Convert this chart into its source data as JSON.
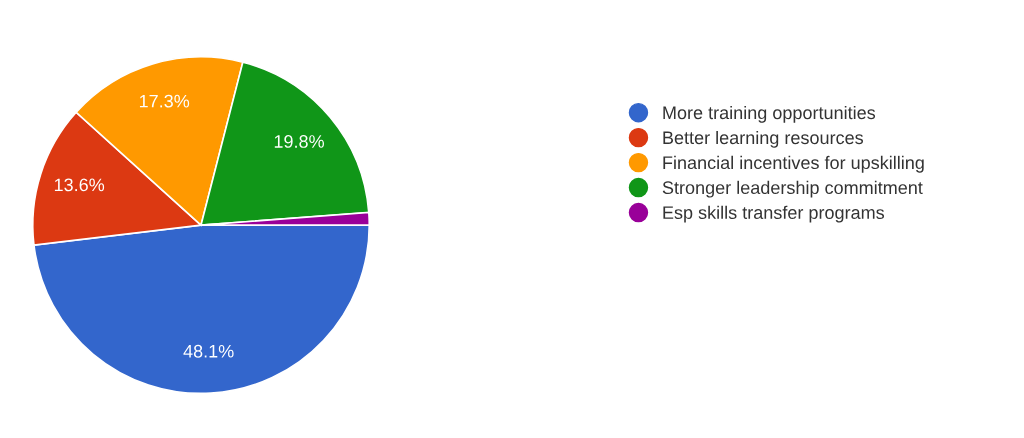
{
  "chart_data": {
    "type": "pie",
    "categories": [
      "More training opportunities",
      "Better learning resources",
      "Financial incentives for upskilling",
      "Stronger leadership commitment",
      "Esp skills transfer programs"
    ],
    "values": [
      48.1,
      13.6,
      17.3,
      19.8,
      1.2
    ],
    "colors": [
      "#3366cc",
      "#dc3912",
      "#ff9900",
      "#109618",
      "#990099"
    ],
    "value_labels": [
      "48.1%",
      "13.6%",
      "17.3%",
      "19.8%",
      null
    ],
    "legend": "right"
  }
}
